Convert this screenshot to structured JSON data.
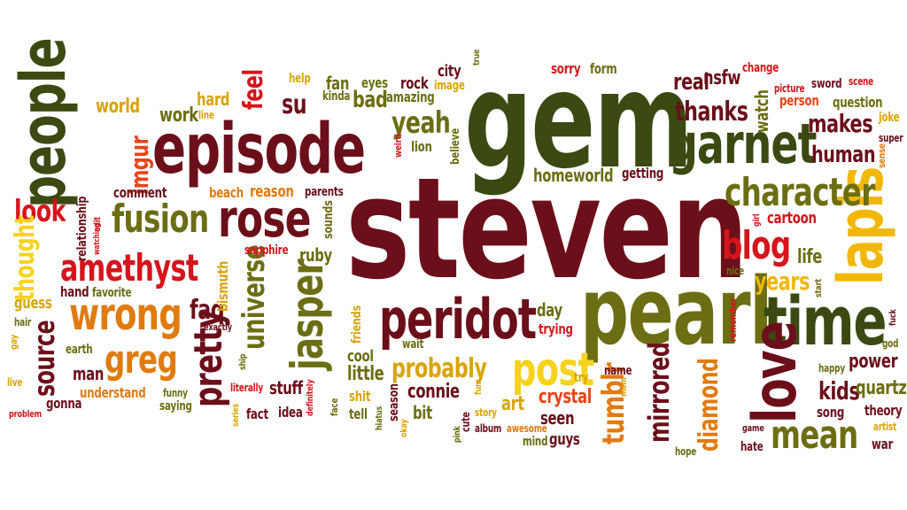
{
  "colors": {
    "background": "#ffffff",
    "maroon": "#6b0f1a",
    "dark_green": "#3a4a12",
    "olive": "#6b6e12",
    "orange": "#e07b10",
    "red_orange": "#e8431a",
    "red": "#d6141c",
    "gold": "#f2b705",
    "yellow": "#f7d21c",
    "amber": "#d9a406",
    "light_orange": "#ef9a1c"
  },
  "words": [
    {
      "text": "steven",
      "color": "maroon"
    },
    {
      "text": "gem",
      "color": "dark_green"
    },
    {
      "text": "pearl",
      "color": "olive"
    },
    {
      "text": "episode",
      "color": "maroon"
    },
    {
      "text": "time",
      "color": "dark_green"
    },
    {
      "text": "people",
      "color": "dark_green"
    },
    {
      "text": "garnet",
      "color": "dark_green"
    },
    {
      "text": "peridot",
      "color": "maroon"
    },
    {
      "text": "lapis",
      "color": "gold"
    },
    {
      "text": "love",
      "color": "maroon"
    },
    {
      "text": "rose",
      "color": "maroon"
    },
    {
      "text": "character",
      "color": "olive"
    },
    {
      "text": "jasper",
      "color": "olive"
    },
    {
      "text": "fusion",
      "color": "olive"
    },
    {
      "text": "amethyst",
      "color": "red"
    },
    {
      "text": "wrong",
      "color": "orange"
    },
    {
      "text": "post",
      "color": "yellow"
    },
    {
      "text": "mean",
      "color": "olive"
    },
    {
      "text": "greg",
      "color": "orange"
    },
    {
      "text": "blog",
      "color": "red"
    },
    {
      "text": "pretty",
      "color": "maroon"
    },
    {
      "text": "universe",
      "color": "olive"
    },
    {
      "text": "thanks",
      "color": "maroon"
    },
    {
      "text": "makes",
      "color": "maroon"
    },
    {
      "text": "human",
      "color": "maroon"
    },
    {
      "text": "yeah",
      "color": "olive"
    },
    {
      "text": "feel",
      "color": "red"
    },
    {
      "text": "imgur",
      "color": "red_orange"
    },
    {
      "text": "look",
      "color": "red"
    },
    {
      "text": "thought",
      "color": "yellow"
    },
    {
      "text": "source",
      "color": "maroon"
    },
    {
      "text": "faq",
      "color": "maroon"
    },
    {
      "text": "probably",
      "color": "amber"
    },
    {
      "text": "tumblr",
      "color": "orange"
    },
    {
      "text": "mirrored",
      "color": "maroon"
    },
    {
      "text": "diamond",
      "color": "orange"
    },
    {
      "text": "years",
      "color": "gold"
    },
    {
      "text": "kids",
      "color": "maroon"
    },
    {
      "text": "quartz",
      "color": "olive"
    },
    {
      "text": "power",
      "color": "maroon"
    },
    {
      "text": "life",
      "color": "olive"
    },
    {
      "text": "su",
      "color": "maroon"
    },
    {
      "text": "real",
      "color": "maroon"
    },
    {
      "text": "bad",
      "color": "olive"
    },
    {
      "text": "watch",
      "color": "olive"
    },
    {
      "text": "nsfw",
      "color": "maroon"
    },
    {
      "text": "world",
      "color": "amber"
    },
    {
      "text": "work",
      "color": "olive"
    },
    {
      "text": "hard",
      "color": "amber"
    },
    {
      "text": "fan",
      "color": "olive"
    },
    {
      "text": "rock",
      "color": "maroon"
    },
    {
      "text": "eyes",
      "color": "olive"
    },
    {
      "text": "city",
      "color": "maroon"
    },
    {
      "text": "sorry",
      "color": "red"
    },
    {
      "text": "form",
      "color": "olive"
    },
    {
      "text": "change",
      "color": "red"
    },
    {
      "text": "help",
      "color": "amber"
    },
    {
      "text": "true",
      "color": "olive"
    },
    {
      "text": "amazing",
      "color": "olive"
    },
    {
      "text": "kinda",
      "color": "olive"
    },
    {
      "text": "image",
      "color": "amber"
    },
    {
      "text": "person",
      "color": "red_orange"
    },
    {
      "text": "question",
      "color": "olive"
    },
    {
      "text": "picture",
      "color": "red"
    },
    {
      "text": "sword",
      "color": "maroon"
    },
    {
      "text": "scene",
      "color": "red"
    },
    {
      "text": "joke",
      "color": "amber"
    },
    {
      "text": "super",
      "color": "maroon"
    },
    {
      "text": "sense",
      "color": "orange"
    },
    {
      "text": "lion",
      "color": "olive"
    },
    {
      "text": "weird",
      "color": "red"
    },
    {
      "text": "believe",
      "color": "olive"
    },
    {
      "text": "homeworld",
      "color": "olive"
    },
    {
      "text": "getting",
      "color": "maroon"
    },
    {
      "text": "comment",
      "color": "maroon"
    },
    {
      "text": "beach",
      "color": "orange"
    },
    {
      "text": "reason",
      "color": "orange"
    },
    {
      "text": "parents",
      "color": "maroon"
    },
    {
      "text": "sounds",
      "color": "olive"
    },
    {
      "text": "relationship",
      "color": "maroon"
    },
    {
      "text": "edit",
      "color": "red"
    },
    {
      "text": "watching",
      "color": "red"
    },
    {
      "text": "line",
      "color": "amber"
    },
    {
      "text": "sapphire",
      "color": "red"
    },
    {
      "text": "ruby",
      "color": "olive"
    },
    {
      "text": "bismuth",
      "color": "amber"
    },
    {
      "text": "hand",
      "color": "maroon"
    },
    {
      "text": "favorite",
      "color": "olive"
    },
    {
      "text": "guess",
      "color": "amber"
    },
    {
      "text": "hair",
      "color": "olive"
    },
    {
      "text": "gay",
      "color": "amber"
    },
    {
      "text": "live",
      "color": "amber"
    },
    {
      "text": "earth",
      "color": "olive"
    },
    {
      "text": "man",
      "color": "maroon"
    },
    {
      "text": "understand",
      "color": "orange"
    },
    {
      "text": "gonna",
      "color": "maroon"
    },
    {
      "text": "problem",
      "color": "red"
    },
    {
      "text": "funny",
      "color": "olive"
    },
    {
      "text": "saying",
      "color": "olive"
    },
    {
      "text": "exactly",
      "color": "maroon"
    },
    {
      "text": "ship",
      "color": "olive"
    },
    {
      "text": "literally",
      "color": "red"
    },
    {
      "text": "series",
      "color": "amber"
    },
    {
      "text": "fact",
      "color": "maroon"
    },
    {
      "text": "stuff",
      "color": "maroon"
    },
    {
      "text": "idea",
      "color": "maroon"
    },
    {
      "text": "definitely",
      "color": "red"
    },
    {
      "text": "face",
      "color": "olive"
    },
    {
      "text": "friends",
      "color": "amber"
    },
    {
      "text": "cool",
      "color": "olive"
    },
    {
      "text": "little",
      "color": "olive"
    },
    {
      "text": "wait",
      "color": "olive"
    },
    {
      "text": "tell",
      "color": "olive"
    },
    {
      "text": "shit",
      "color": "amber"
    },
    {
      "text": "hiatus",
      "color": "olive"
    },
    {
      "text": "season",
      "color": "maroon"
    },
    {
      "text": "okay",
      "color": "amber"
    },
    {
      "text": "bit",
      "color": "olive"
    },
    {
      "text": "connie",
      "color": "maroon"
    },
    {
      "text": "pink",
      "color": "olive"
    },
    {
      "text": "cute",
      "color": "maroon"
    },
    {
      "text": "story",
      "color": "amber"
    },
    {
      "text": "fun",
      "color": "amber"
    },
    {
      "text": "album",
      "color": "maroon"
    },
    {
      "text": "awesome",
      "color": "orange"
    },
    {
      "text": "art",
      "color": "amber"
    },
    {
      "text": "crystal",
      "color": "red_orange"
    },
    {
      "text": "seen",
      "color": "maroon"
    },
    {
      "text": "mind",
      "color": "olive"
    },
    {
      "text": "guys",
      "color": "maroon"
    },
    {
      "text": "day",
      "color": "olive"
    },
    {
      "text": "trying",
      "color": "red"
    },
    {
      "text": "try",
      "color": "amber"
    },
    {
      "text": "name",
      "color": "maroon"
    },
    {
      "text": "mom",
      "color": "amber"
    },
    {
      "text": "hope",
      "color": "olive"
    },
    {
      "text": "nice",
      "color": "olive"
    },
    {
      "text": "remember",
      "color": "red"
    },
    {
      "text": "girl",
      "color": "red"
    },
    {
      "text": "cartoon",
      "color": "red"
    },
    {
      "text": "start",
      "color": "olive"
    },
    {
      "text": "happy",
      "color": "olive"
    },
    {
      "text": "song",
      "color": "maroon"
    },
    {
      "text": "game",
      "color": "maroon"
    },
    {
      "text": "hate",
      "color": "maroon"
    },
    {
      "text": "theory",
      "color": "maroon"
    },
    {
      "text": "artist",
      "color": "amber"
    },
    {
      "text": "war",
      "color": "maroon"
    },
    {
      "text": "god",
      "color": "olive"
    },
    {
      "text": "fuck",
      "color": "maroon"
    }
  ]
}
